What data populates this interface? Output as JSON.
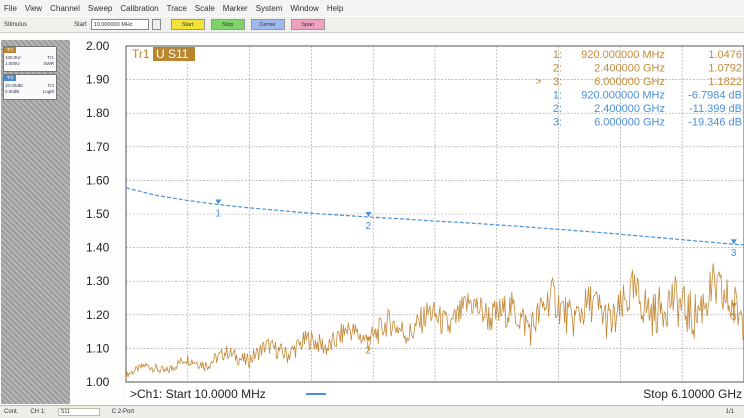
{
  "menu": [
    "File",
    "View",
    "Channel",
    "Sweep",
    "Calibration",
    "Trace",
    "Scale",
    "Marker",
    "System",
    "Window",
    "Help"
  ],
  "toolbar": {
    "stimulus_label": "Stimulus",
    "start_label": "Start",
    "start_value": "10.000000 MHz",
    "buttons": [
      {
        "label": "Start",
        "color": "#f3e238"
      },
      {
        "label": "Stop",
        "color": "#7fd36b"
      },
      {
        "label": "Center",
        "color": "#9fb8ee"
      },
      {
        "label": "Span",
        "color": "#f0a0c0"
      }
    ]
  },
  "traces": [
    {
      "tag": "Tr1",
      "tag_color": "#b8862e",
      "scale": "100.0U/",
      "ref": "1.000U",
      "name": "Tr1",
      "format": "SWR"
    },
    {
      "tag": "Tr2",
      "tag_color": "#4b8ad0",
      "scale": "10.00dB/",
      "ref": "0.00dB",
      "name": "Tr2",
      "format": "LogM"
    }
  ],
  "trace_label": {
    "prefix": "Tr1",
    "badge": "U S11"
  },
  "markers": [
    {
      "active": "",
      "num": "1:",
      "freq": "920.000000 MHz",
      "value": "1.0476",
      "trace": "swr"
    },
    {
      "active": "",
      "num": "2:",
      "freq": "2.400000 GHz",
      "value": "1.0792",
      "trace": "swr"
    },
    {
      "active": ">",
      "num": "3:",
      "freq": "6.000000 GHz",
      "value": "1.1822",
      "trace": "swr"
    },
    {
      "active": "",
      "num": "1:",
      "freq": "920.000000 MHz",
      "value": "-6.7984 dB",
      "trace": "logm"
    },
    {
      "active": "",
      "num": "2:",
      "freq": "2.400000 GHz",
      "value": "-11.399 dB",
      "trace": "logm"
    },
    {
      "active": "",
      "num": "3:",
      "freq": "6.000000 GHz",
      "value": "-19.346 dB",
      "trace": "logm"
    }
  ],
  "start_text": ">Ch1: Start  10.0000 MHz",
  "stop_text": "Stop  6.10000 GHz",
  "status": {
    "left": "Cont.",
    "channel": "CH 1:",
    "param": "S11",
    "mid": "C 2-Port",
    "right": "1/1"
  },
  "chart_data": {
    "type": "line",
    "xlim": [
      10,
      6100
    ],
    "ylim": [
      1.0,
      2.0
    ],
    "yticks": [
      "2.00",
      "1.90",
      "1.80",
      "1.70",
      "1.60",
      "1.50",
      "1.40",
      "1.30",
      "1.20",
      "1.10",
      "1.00"
    ],
    "series": [
      {
        "color": "#4a90d9",
        "style": "dashed",
        "x": [
          10,
          300,
          600,
          900,
          1200,
          1500,
          1800,
          2100,
          2400,
          2700,
          3000,
          3300,
          3600,
          3900,
          4200,
          4500,
          4800,
          5100,
          5400,
          5700,
          6000,
          6100
        ],
        "y": [
          1.578,
          1.556,
          1.541,
          1.529,
          1.519,
          1.511,
          1.503,
          1.497,
          1.491,
          1.486,
          1.48,
          1.475,
          1.469,
          1.463,
          1.456,
          1.449,
          1.442,
          1.434,
          1.426,
          1.418,
          1.41,
          1.408
        ]
      },
      {
        "color": "#c48a3a",
        "style": "noisy",
        "x": [
          10,
          200,
          400,
          600,
          800,
          1000,
          1200,
          1400,
          1600,
          1800,
          2000,
          2200,
          2400,
          2600,
          2800,
          3000,
          3200,
          3400,
          3600,
          3800,
          4000,
          4200,
          4400,
          4600,
          4800,
          5000,
          5200,
          5400,
          5600,
          5800,
          6000,
          6100
        ],
        "y": [
          1.02,
          1.05,
          1.03,
          1.07,
          1.05,
          1.09,
          1.06,
          1.11,
          1.08,
          1.13,
          1.1,
          1.16,
          1.12,
          1.18,
          1.14,
          1.21,
          1.16,
          1.24,
          1.19,
          1.22,
          1.16,
          1.26,
          1.18,
          1.24,
          1.17,
          1.27,
          1.2,
          1.25,
          1.19,
          1.28,
          1.22,
          1.2
        ]
      }
    ],
    "marker_points": [
      {
        "label": "1",
        "x": 920,
        "series": 0
      },
      {
        "label": "2",
        "x": 2400,
        "series": 0
      },
      {
        "label": "3",
        "x": 6000,
        "series": 0
      },
      {
        "label": "2",
        "x": 2400,
        "series": 1
      },
      {
        "label": "3",
        "x": 6000,
        "series": 1
      }
    ]
  }
}
